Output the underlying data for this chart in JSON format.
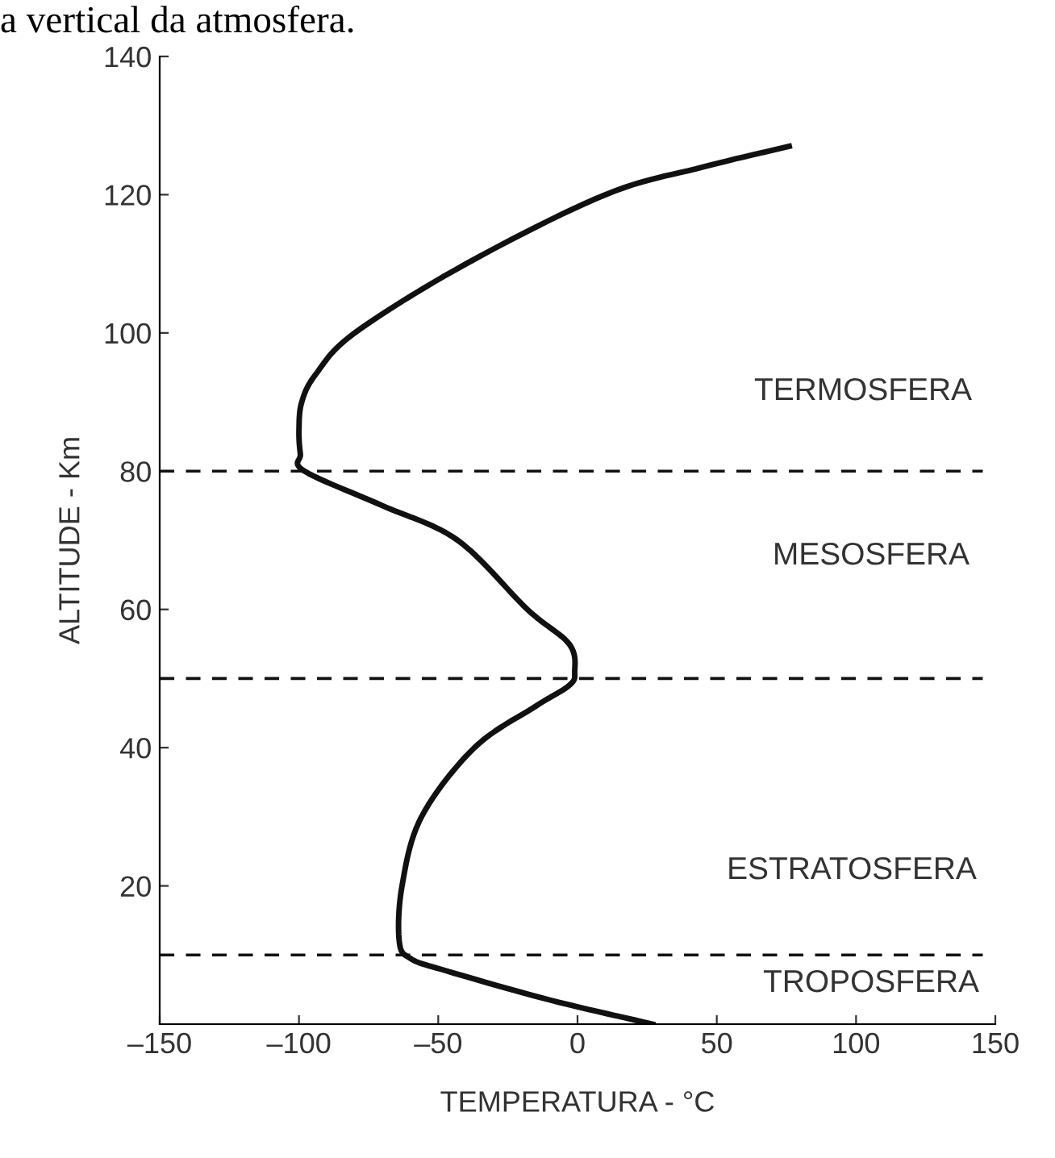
{
  "chart_data": {
    "type": "line",
    "title": "a vertical da atmosfera.",
    "xlabel": "TEMPERATURA - °C",
    "ylabel": "ALTITUDE - Km",
    "xlim": [
      -150,
      150
    ],
    "ylim": [
      0,
      140
    ],
    "xticks": [
      {
        "value": -150,
        "label": "–150"
      },
      {
        "value": -100,
        "label": "–100"
      },
      {
        "value": -50,
        "label": "–50"
      },
      0,
      50,
      100,
      150
    ],
    "yticks": [
      20,
      40,
      60,
      80,
      100,
      120,
      140
    ],
    "series": [
      {
        "color": "#111111",
        "x": [
          27,
          -10,
          -47,
          -60,
          -64,
          -63,
          -56,
          -37,
          -15,
          -3,
          -1,
          -3,
          -18,
          -43,
          -70,
          -98,
          -99.5,
          -100,
          -99,
          -94,
          -80,
          -40,
          10,
          45,
          76
        ],
        "values": [
          0,
          3.5,
          7.7,
          9.5,
          12,
          20,
          30,
          40,
          46,
          49,
          51,
          55,
          60,
          70,
          75,
          80,
          82.5,
          86,
          90,
          94,
          100,
          110,
          120,
          124,
          127
        ]
      }
    ],
    "ref_lines": [
      {
        "axis": "y",
        "value": 10,
        "line_style": "dashed",
        "color": "#111111"
      },
      {
        "axis": "y",
        "value": 50,
        "line_style": "dashed",
        "color": "#111111"
      },
      {
        "axis": "y",
        "value": 80,
        "line_style": "dashed",
        "color": "#111111"
      }
    ],
    "annotations": [
      "TERMOSFERA",
      "MESOSFERA",
      "ESTRATOSFERA",
      "TROPOSFERA"
    ],
    "grid": false,
    "legend": false,
    "marker": "none",
    "line_style": "solid"
  }
}
